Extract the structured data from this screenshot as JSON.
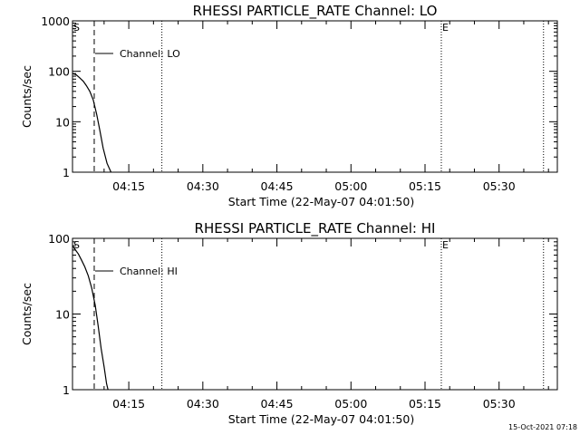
{
  "chart_data": [
    {
      "type": "line",
      "title": "RHESSI PARTICLE_RATE Channel: LO",
      "xlabel": "Start Time (22-May-07 04:01:50)",
      "ylabel": "Counts/sec",
      "yscale": "log",
      "ylim": [
        1,
        1000
      ],
      "y_ticks": [
        "1",
        "10",
        "100",
        "1000"
      ],
      "x_range_min": [
        1.8,
        100
      ],
      "x_ticks": [
        {
          "label": "04:15",
          "min": 13.2
        },
        {
          "label": "04:30",
          "min": 28.2
        },
        {
          "label": "04:45",
          "min": 43.2
        },
        {
          "label": "05:00",
          "min": 58.2
        },
        {
          "label": "05:15",
          "min": 73.2
        },
        {
          "label": "05:30",
          "min": 88.2
        }
      ],
      "markers": [
        {
          "label": "S",
          "min": 1.8,
          "style": "dotted"
        },
        {
          "label": "",
          "min": 6.2,
          "style": "dashed"
        },
        {
          "label": "",
          "min": 19.9,
          "style": "dotted"
        },
        {
          "label": "E",
          "min": 76.5,
          "style": "dotted"
        },
        {
          "label": "",
          "min": 97.2,
          "style": "dotted"
        }
      ],
      "legend": "Channel: LO",
      "series": [
        {
          "x": [
            1.8,
            2.5,
            3.2,
            4.0,
            4.6,
            5.3,
            6.0,
            6.7,
            7.3,
            8.0,
            8.8,
            9.6
          ],
          "y": [
            90,
            86,
            75,
            63,
            52,
            40,
            27,
            14,
            7,
            3,
            1.5,
            1
          ]
        }
      ]
    },
    {
      "type": "line",
      "title": "RHESSI PARTICLE_RATE Channel: HI",
      "xlabel": "Start Time (22-May-07 04:01:50)",
      "ylabel": "Counts/sec",
      "yscale": "log",
      "ylim": [
        1,
        100
      ],
      "y_ticks": [
        "1",
        "10",
        "100"
      ],
      "x_range_min": [
        1.8,
        100
      ],
      "x_ticks": [
        {
          "label": "04:15",
          "min": 13.2
        },
        {
          "label": "04:30",
          "min": 28.2
        },
        {
          "label": "04:45",
          "min": 43.2
        },
        {
          "label": "05:00",
          "min": 58.2
        },
        {
          "label": "05:15",
          "min": 73.2
        },
        {
          "label": "05:30",
          "min": 88.2
        }
      ],
      "markers": [
        {
          "label": "S",
          "min": 1.8,
          "style": "dotted"
        },
        {
          "label": "",
          "min": 6.2,
          "style": "dashed"
        },
        {
          "label": "",
          "min": 19.9,
          "style": "dotted"
        },
        {
          "label": "E",
          "min": 76.5,
          "style": "dotted"
        },
        {
          "label": "",
          "min": 97.2,
          "style": "dotted"
        }
      ],
      "legend": "Channel: HI",
      "series": [
        {
          "x": [
            1.8,
            2.4,
            3.0,
            3.6,
            4.3,
            5.0,
            5.7,
            6.4,
            7.0,
            7.6,
            8.2,
            8.7,
            9.0
          ],
          "y": [
            80,
            70,
            62,
            52,
            42,
            32,
            22,
            13,
            7,
            3.5,
            2,
            1.2,
            1
          ]
        }
      ]
    }
  ],
  "footer": "15-Oct-2021 07:18"
}
